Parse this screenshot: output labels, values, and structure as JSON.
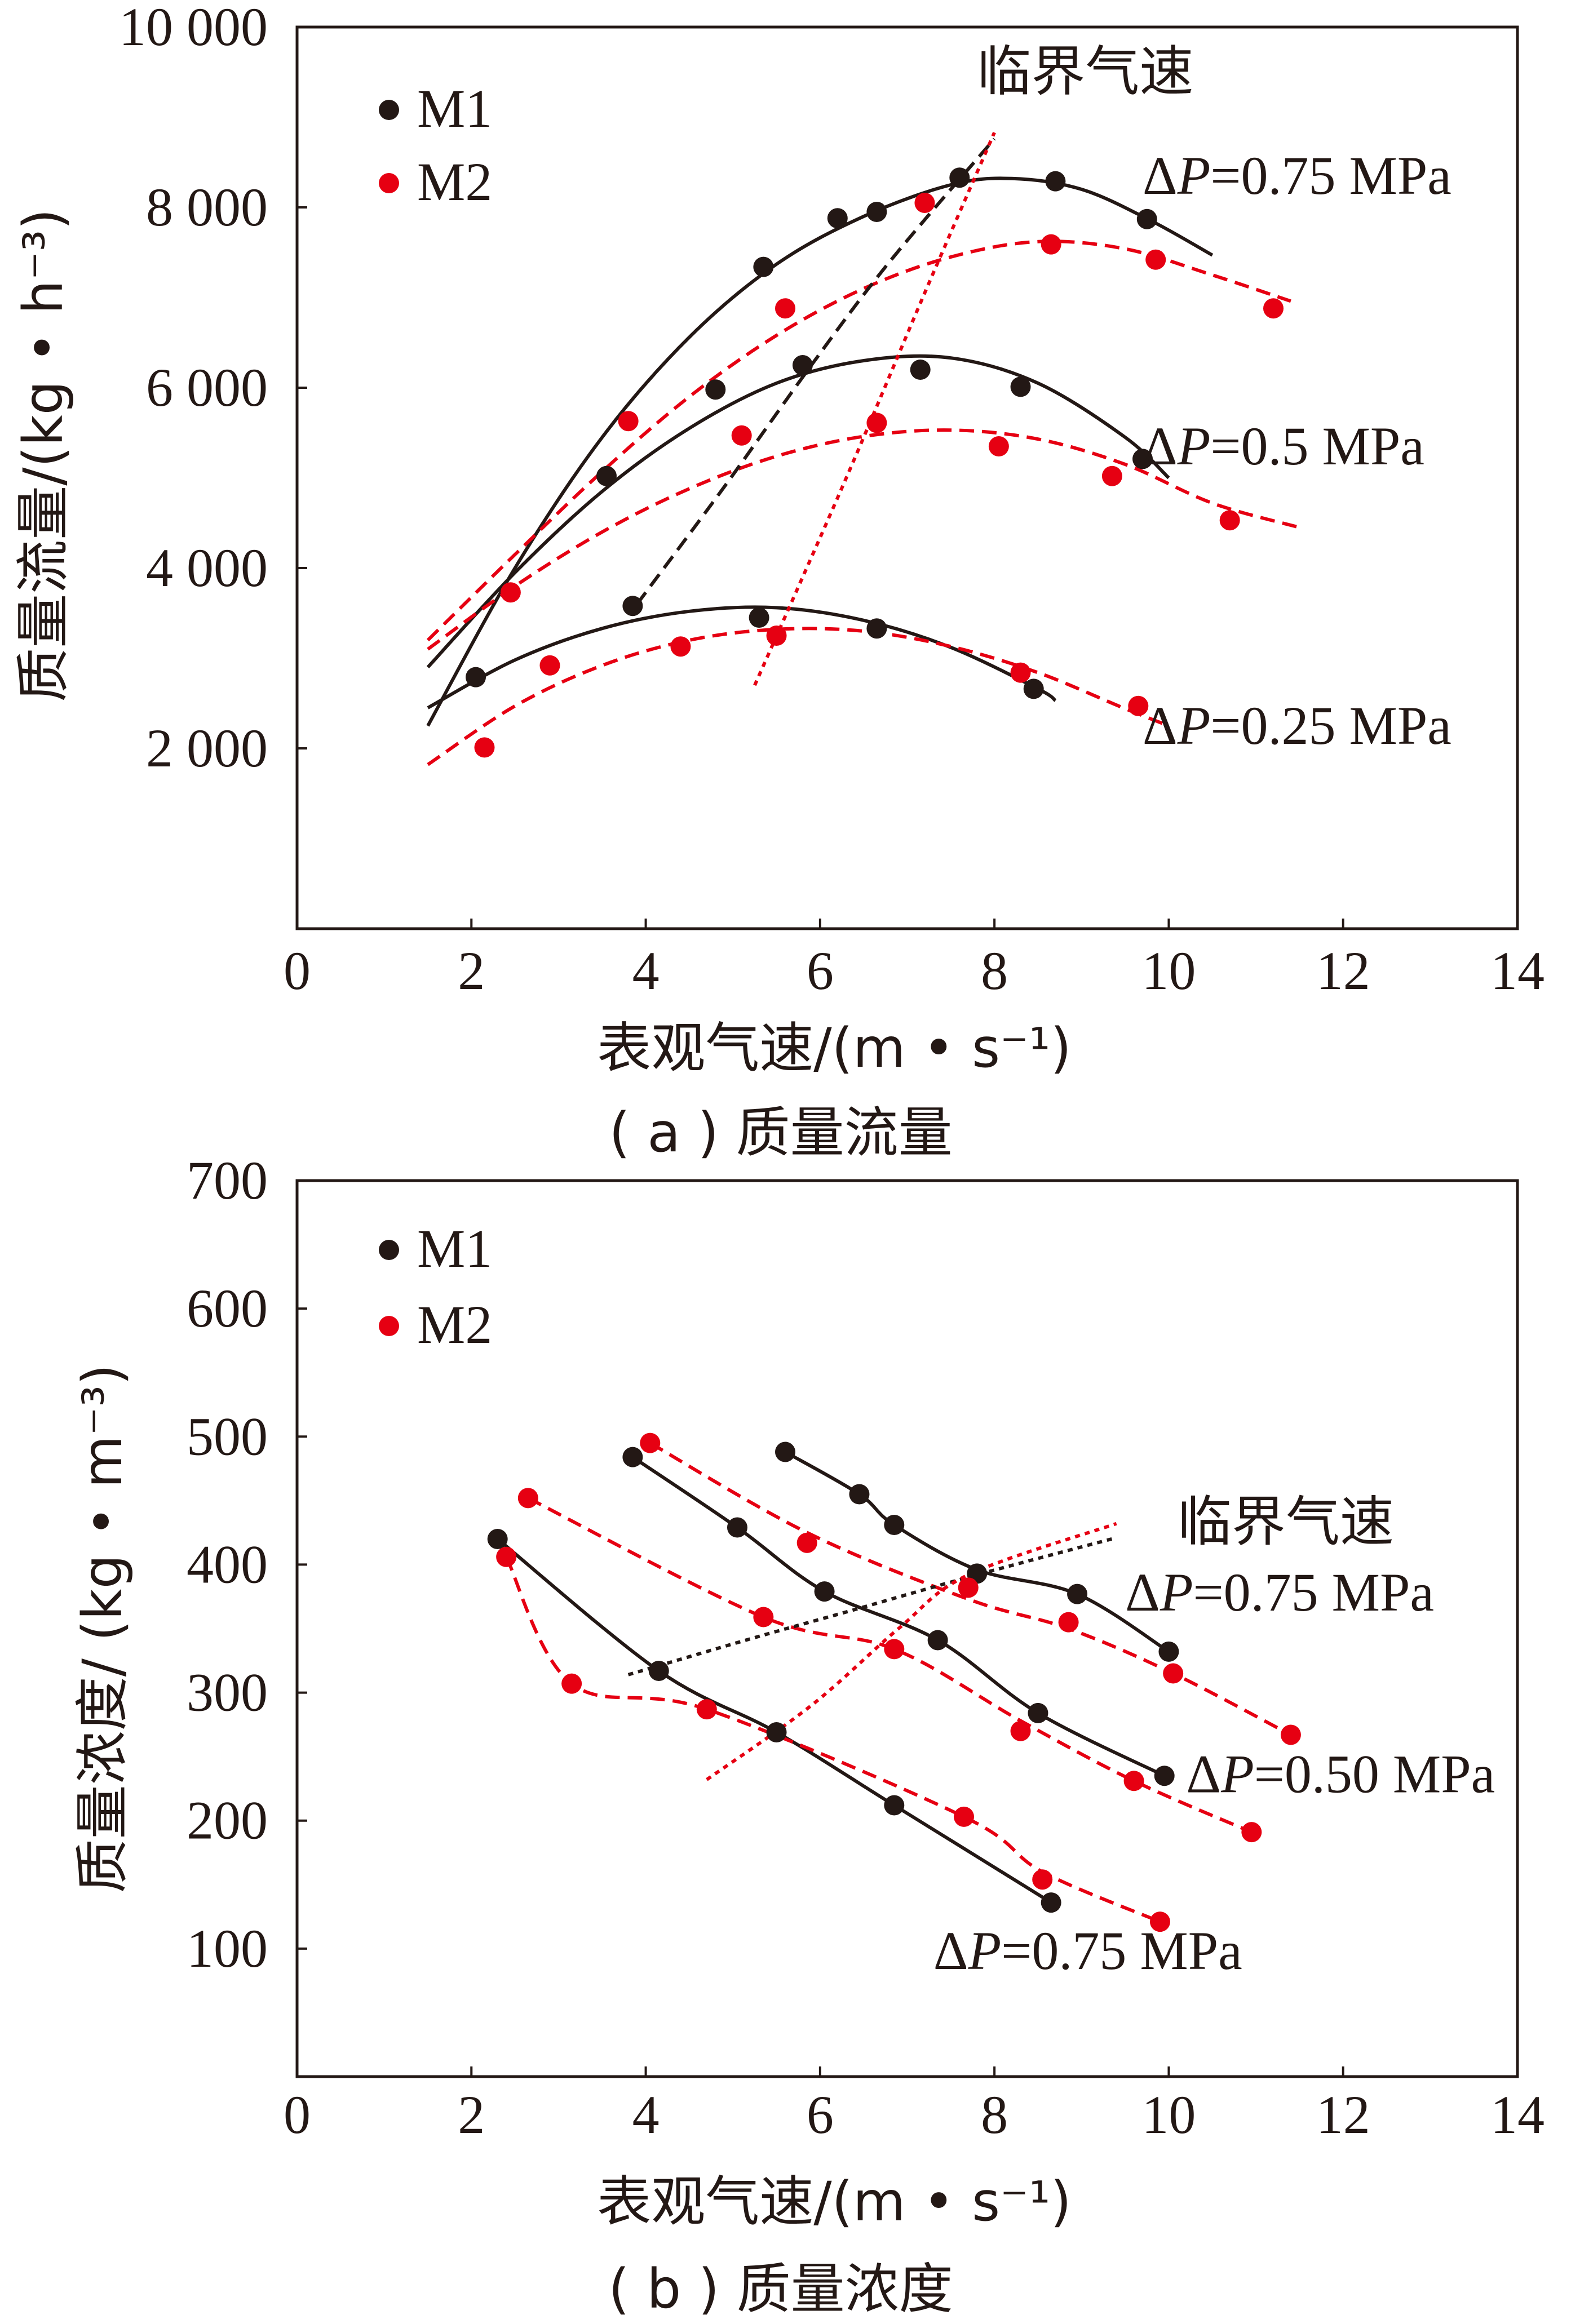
{
  "colors": {
    "black": "#231815",
    "red": "#e60012"
  },
  "chart_data": [
    {
      "type": "scatter",
      "caption": "( a ) 质量流量",
      "xlabel": "表观气速/(m • s⁻¹)",
      "ylabel": "质量流量/(kg • h⁻³)",
      "xlim": [
        0,
        14
      ],
      "ylim": [
        0,
        10000
      ],
      "x_ticks": [
        0,
        2,
        4,
        6,
        8,
        10,
        12,
        14
      ],
      "x_tick_labels": [
        "0",
        "2",
        "4",
        "6",
        "8",
        "10",
        "12",
        "14"
      ],
      "y_ticks": [
        2000,
        4000,
        6000,
        8000,
        10000
      ],
      "y_tick_labels": [
        "2 000",
        "4 000",
        "6 000",
        "8 000",
        "10 000"
      ],
      "legend": {
        "position": "top-left",
        "entries": [
          {
            "name": "M1",
            "color": "#231815"
          },
          {
            "name": "M2",
            "color": "#e60012"
          }
        ]
      },
      "annotations": [
        {
          "text": "临界气速",
          "x": 7.8,
          "y": 9300
        },
        {
          "text": "ΔP=0.75 MPa",
          "x": 9.7,
          "y": 8150
        },
        {
          "text": "ΔP=0.5 MPa",
          "x": 9.7,
          "y": 5150
        },
        {
          "text": "ΔP=0.25 MPa",
          "x": 9.7,
          "y": 2050
        }
      ],
      "series": [
        {
          "name": "M1",
          "group": "ΔP=0.75 MPa",
          "color": "#231815",
          "points": [
            [
              5.35,
              7340
            ],
            [
              6.2,
              7880
            ],
            [
              6.65,
              7950
            ],
            [
              7.6,
              8330
            ],
            [
              8.7,
              8290
            ],
            [
              9.75,
              7870
            ]
          ]
        },
        {
          "name": "M2",
          "group": "ΔP=0.75 MPa",
          "color": "#e60012",
          "points": [
            [
              5.6,
              6880
            ],
            [
              7.2,
              8050
            ],
            [
              8.65,
              7590
            ],
            [
              9.85,
              7420
            ],
            [
              11.2,
              6880
            ]
          ]
        },
        {
          "name": "M1",
          "group": "ΔP=0.5 MPa",
          "color": "#231815",
          "points": [
            [
              3.55,
              5020
            ],
            [
              4.8,
              5980
            ],
            [
              5.8,
              6250
            ],
            [
              7.15,
              6200
            ],
            [
              8.3,
              6010
            ],
            [
              9.7,
              5210
            ]
          ]
        },
        {
          "name": "M2",
          "group": "ΔP=0.5 MPa",
          "color": "#e60012",
          "points": [
            [
              3.8,
              5630
            ],
            [
              5.1,
              5470
            ],
            [
              6.65,
              5610
            ],
            [
              8.05,
              5350
            ],
            [
              9.35,
              5020
            ],
            [
              10.7,
              4530
            ]
          ]
        },
        {
          "name": "M1",
          "group": "ΔP=0.25 MPa",
          "color": "#231815",
          "points": [
            [
              2.05,
              2790
            ],
            [
              3.85,
              3580
            ],
            [
              5.3,
              3450
            ],
            [
              6.65,
              3330
            ],
            [
              8.45,
              2660
            ]
          ]
        },
        {
          "name": "M2",
          "group": "ΔP=0.25 MPa",
          "color": "#e60012",
          "points": [
            [
              2.15,
              2010
            ],
            [
              2.45,
              3730
            ],
            [
              2.9,
              2920
            ],
            [
              4.4,
              3130
            ],
            [
              5.5,
              3250
            ],
            [
              8.3,
              2840
            ],
            [
              9.65,
              2470
            ]
          ]
        }
      ],
      "fit_curves": [
        {
          "color": "#231815",
          "style": "solid",
          "points": [
            [
              1.5,
              2250
            ],
            [
              2.5,
              4000
            ],
            [
              3.5,
              5450
            ],
            [
              4.5,
              6560
            ],
            [
              5.5,
              7370
            ],
            [
              6.5,
              7900
            ],
            [
              7.5,
              8250
            ],
            [
              8.2,
              8320
            ],
            [
              9,
              8200
            ],
            [
              9.8,
              7850
            ],
            [
              10.5,
              7470
            ]
          ]
        },
        {
          "color": "#e60012",
          "style": "dash",
          "points": [
            [
              1.5,
              3200
            ],
            [
              2.5,
              4150
            ],
            [
              3.5,
              5070
            ],
            [
              4.5,
              5900
            ],
            [
              5.5,
              6580
            ],
            [
              6.5,
              7100
            ],
            [
              7.5,
              7450
            ],
            [
              8.5,
              7620
            ],
            [
              9.5,
              7540
            ],
            [
              10.5,
              7250
            ],
            [
              11.4,
              6960
            ]
          ]
        },
        {
          "color": "#231815",
          "style": "solid",
          "points": [
            [
              1.5,
              2900
            ],
            [
              2.5,
              3950
            ],
            [
              3.5,
              4850
            ],
            [
              4.5,
              5550
            ],
            [
              5.5,
              6050
            ],
            [
              6.5,
              6300
            ],
            [
              7.5,
              6330
            ],
            [
              8.5,
              6050
            ],
            [
              9.5,
              5450
            ],
            [
              10,
              5000
            ]
          ]
        },
        {
          "color": "#e60012",
          "style": "dash",
          "points": [
            [
              1.5,
              3100
            ],
            [
              2.5,
              3800
            ],
            [
              3.5,
              4400
            ],
            [
              4.5,
              4880
            ],
            [
              5.5,
              5240
            ],
            [
              6.5,
              5460
            ],
            [
              7.5,
              5530
            ],
            [
              8.5,
              5430
            ],
            [
              9.5,
              5150
            ],
            [
              10.5,
              4720
            ],
            [
              11.5,
              4450
            ]
          ]
        },
        {
          "color": "#231815",
          "style": "solid",
          "points": [
            [
              1.5,
              2450
            ],
            [
              2.5,
              2980
            ],
            [
              3.5,
              3330
            ],
            [
              4.5,
              3520
            ],
            [
              5.5,
              3560
            ],
            [
              6.5,
              3420
            ],
            [
              7.5,
              3120
            ],
            [
              8.5,
              2660
            ],
            [
              8.7,
              2530
            ]
          ]
        },
        {
          "color": "#e60012",
          "style": "dash",
          "points": [
            [
              1.5,
              1820
            ],
            [
              2.5,
              2470
            ],
            [
              3.5,
              2920
            ],
            [
              4.5,
              3200
            ],
            [
              5.5,
              3320
            ],
            [
              6.5,
              3300
            ],
            [
              7.5,
              3130
            ],
            [
              8.5,
              2840
            ],
            [
              9.5,
              2440
            ],
            [
              10,
              2250
            ]
          ]
        }
      ],
      "critical_lines": [
        {
          "color": "#231815",
          "style": "dash",
          "points": [
            [
              3.9,
              3600
            ],
            [
              4.9,
              4900
            ],
            [
              5.9,
              6250
            ],
            [
              6.8,
              7400
            ],
            [
              8,
              8760
            ]
          ]
        },
        {
          "color": "#e60012",
          "style": "dot",
          "points": [
            [
              5.25,
              2700
            ],
            [
              6.3,
              5000
            ],
            [
              7.2,
              7050
            ],
            [
              8,
              8830
            ]
          ]
        }
      ]
    },
    {
      "type": "scatter",
      "caption": "( b ) 质量浓度",
      "xlabel": "表观气速/(m • s⁻¹)",
      "ylabel": "质量浓度/ (kg • m⁻³)",
      "xlim": [
        0,
        14
      ],
      "ylim": [
        0,
        700
      ],
      "x_ticks": [
        0,
        2,
        4,
        6,
        8,
        10,
        12,
        14
      ],
      "x_tick_labels": [
        "0",
        "2",
        "4",
        "6",
        "8",
        "10",
        "12",
        "14"
      ],
      "y_ticks": [
        100,
        200,
        300,
        400,
        500,
        600,
        700
      ],
      "y_tick_labels": [
        "100",
        "200",
        "300",
        "400",
        "500",
        "600",
        "700"
      ],
      "legend": {
        "position": "top-left",
        "entries": [
          {
            "name": "M1",
            "color": "#231815"
          },
          {
            "name": "M2",
            "color": "#e60012"
          }
        ]
      },
      "annotations": [
        {
          "text": "临界气速",
          "x": 10.1,
          "y": 419
        },
        {
          "text": "ΔP=0.75 MPa",
          "x": 9.5,
          "y": 364
        },
        {
          "text": "ΔP=0.50 MPa",
          "x": 10.2,
          "y": 222
        },
        {
          "text": "ΔP=0.75 MPa",
          "x": 7.3,
          "y": 84
        }
      ],
      "series": [
        {
          "name": "M1",
          "group": "ΔP=0.75 MPa",
          "color": "#231815",
          "points": [
            [
              5.6,
              488
            ],
            [
              6.45,
              455
            ],
            [
              6.85,
              431
            ],
            [
              7.8,
              393
            ],
            [
              8.95,
              377
            ],
            [
              10,
              332
            ]
          ]
        },
        {
          "name": "M2",
          "group": "ΔP=0.75 MPa",
          "color": "#e60012",
          "points": [
            [
              4.05,
              495
            ],
            [
              5.85,
              417
            ],
            [
              7.7,
              382
            ],
            [
              8.85,
              355
            ],
            [
              10.05,
              315
            ],
            [
              11.4,
              267
            ]
          ]
        },
        {
          "name": "M1",
          "group": "ΔP=0.50 MPa",
          "color": "#231815",
          "points": [
            [
              3.85,
              484
            ],
            [
              5.05,
              429
            ],
            [
              6.05,
              379
            ],
            [
              7.35,
              341
            ],
            [
              8.5,
              284
            ],
            [
              9.95,
              235
            ]
          ]
        },
        {
          "name": "M2",
          "group": "ΔP=0.50 MPa",
          "color": "#e60012",
          "points": [
            [
              2.65,
              452
            ],
            [
              5.35,
              359
            ],
            [
              6.85,
              334
            ],
            [
              8.3,
              270
            ],
            [
              9.6,
              231
            ],
            [
              10.95,
              191
            ]
          ]
        },
        {
          "name": "M1",
          "group": "ΔP=0.75 MPa (lower)",
          "color": "#231815",
          "points": [
            [
              2.3,
              420
            ],
            [
              4.15,
              317
            ],
            [
              5.5,
              269
            ],
            [
              6.85,
              212
            ],
            [
              8.65,
              136
            ]
          ]
        },
        {
          "name": "M2",
          "group": "ΔP=0.75 MPa (lower)",
          "color": "#e60012",
          "points": [
            [
              2.4,
              406
            ],
            [
              3.15,
              307
            ],
            [
              4.7,
              287
            ],
            [
              7.65,
              203
            ],
            [
              8.55,
              154
            ],
            [
              9.9,
              121
            ]
          ]
        }
      ],
      "fit_curves": [
        {
          "color": "#231815",
          "style": "solid",
          "points": [
            [
              5.6,
              488
            ],
            [
              6.45,
              455
            ],
            [
              6.85,
              431
            ],
            [
              7.8,
              396
            ],
            [
              8.95,
              377
            ],
            [
              10,
              332
            ]
          ]
        },
        {
          "color": "#e60012",
          "style": "dash",
          "points": [
            [
              4.05,
              495
            ],
            [
              5.85,
              425
            ],
            [
              7.7,
              373
            ],
            [
              8.85,
              350
            ],
            [
              10.05,
              315
            ],
            [
              11.4,
              267
            ]
          ]
        },
        {
          "color": "#231815",
          "style": "solid",
          "points": [
            [
              3.85,
              484
            ],
            [
              5.05,
              429
            ],
            [
              6.05,
              379
            ],
            [
              7.35,
              341
            ],
            [
              8.5,
              284
            ],
            [
              9.95,
              235
            ]
          ]
        },
        {
          "color": "#e60012",
          "style": "dash",
          "points": [
            [
              2.65,
              452
            ],
            [
              5.35,
              359
            ],
            [
              6.85,
              334
            ],
            [
              8.3,
              278
            ],
            [
              9.6,
              231
            ],
            [
              10.95,
              191
            ]
          ]
        },
        {
          "color": "#231815",
          "style": "solid",
          "points": [
            [
              2.3,
              420
            ],
            [
              4.15,
              317
            ],
            [
              5.5,
              269
            ],
            [
              6.85,
              212
            ],
            [
              8.65,
              136
            ]
          ]
        },
        {
          "color": "#e60012",
          "style": "dash",
          "points": [
            [
              2.4,
              406
            ],
            [
              3.15,
              307
            ],
            [
              4.7,
              287
            ],
            [
              7.65,
              203
            ],
            [
              8.55,
              160
            ],
            [
              9.9,
              121
            ]
          ]
        }
      ],
      "critical_lines": [
        {
          "color": "#231815",
          "style": "dot",
          "points": [
            [
              3.8,
              314
            ],
            [
              5.2,
              342
            ],
            [
              6.3,
              363
            ],
            [
              7.8,
              392
            ],
            [
              9.4,
              421
            ]
          ]
        },
        {
          "color": "#e60012",
          "style": "dot",
          "points": [
            [
              4.7,
              232
            ],
            [
              5.9,
              290
            ],
            [
              6.9,
              350
            ],
            [
              7.7,
              392
            ],
            [
              9.4,
              432
            ]
          ]
        }
      ]
    }
  ]
}
